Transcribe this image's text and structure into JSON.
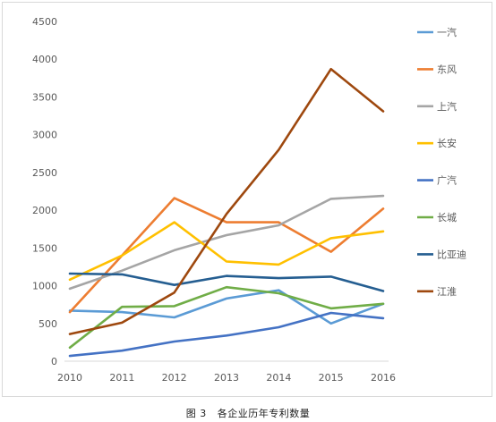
{
  "chart_data": {
    "type": "line",
    "title": "",
    "xlabel": "",
    "ylabel": "",
    "x": [
      2010,
      2011,
      2012,
      2013,
      2014,
      2015,
      2016
    ],
    "ylim": [
      0,
      4500
    ],
    "yticks": [
      0,
      500,
      1000,
      1500,
      2000,
      2500,
      3000,
      3500,
      4000,
      4500
    ],
    "grid": false,
    "legend_position": "right",
    "series": [
      {
        "name": "一汽",
        "color": "#5b9bd5",
        "values": [
          670,
          650,
          580,
          830,
          940,
          500,
          760
        ]
      },
      {
        "name": "东风",
        "color": "#ed7d31",
        "values": [
          650,
          1400,
          2160,
          1840,
          1840,
          1450,
          2020
        ]
      },
      {
        "name": "上汽",
        "color": "#a5a5a5",
        "values": [
          960,
          1200,
          1470,
          1670,
          1800,
          2150,
          2190
        ]
      },
      {
        "name": "长安",
        "color": "#ffc000",
        "values": [
          1080,
          1400,
          1840,
          1320,
          1280,
          1630,
          1720
        ]
      },
      {
        "name": "广汽",
        "color": "#4472c4",
        "values": [
          70,
          140,
          260,
          340,
          450,
          640,
          570
        ]
      },
      {
        "name": "长城",
        "color": "#70ad47",
        "values": [
          180,
          720,
          730,
          980,
          900,
          700,
          760
        ]
      },
      {
        "name": "比亚迪",
        "color": "#255e91",
        "values": [
          1160,
          1150,
          1010,
          1130,
          1100,
          1120,
          930
        ]
      },
      {
        "name": "江淮",
        "color": "#9e480e",
        "values": [
          360,
          510,
          910,
          1950,
          2800,
          3870,
          3310
        ]
      }
    ]
  },
  "caption": {
    "label": "图 3",
    "text": "各企业历年专利数量"
  }
}
